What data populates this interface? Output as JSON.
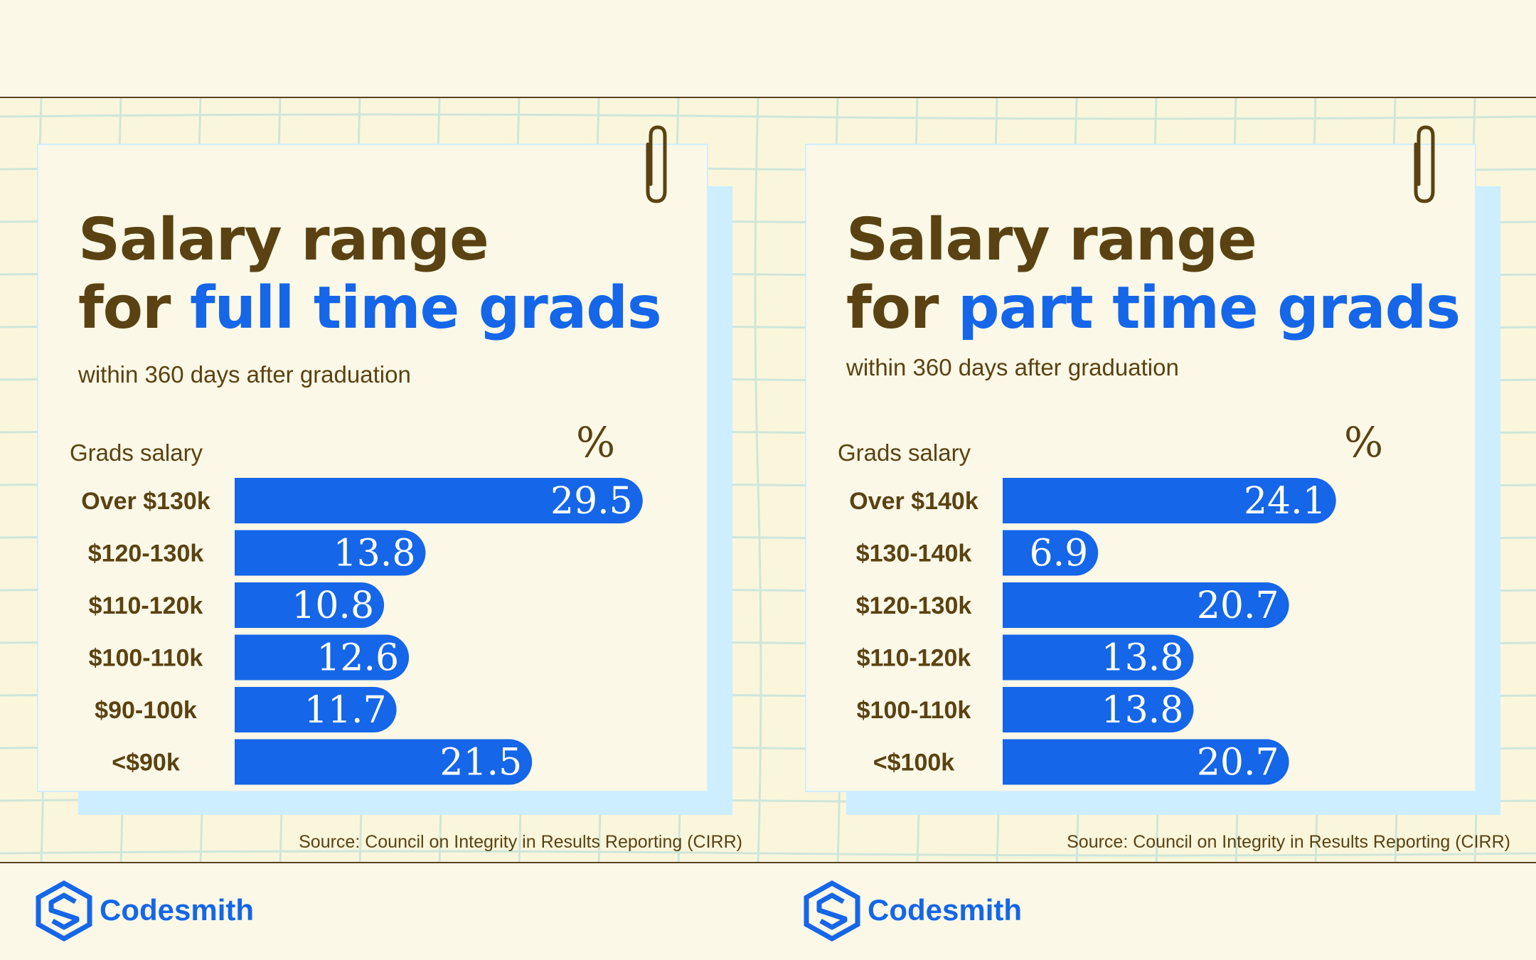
{
  "panels": [
    {
      "title_line1": "Salary range",
      "title_line2_prefix": "for ",
      "title_line2_highlight": "full time grads",
      "subtitle": "within 360 days after graduation",
      "column_header": "Grads salary",
      "value_header": "%",
      "source": "Source: Council on Integrity in Results Reporting (CIRR)",
      "brand": "Codesmith",
      "values_text": [
        "29.5",
        "13.8",
        "10.8",
        "12.6",
        "11.7",
        "21.5"
      ]
    },
    {
      "title_line1": "Salary range",
      "title_line2_prefix": "for ",
      "title_line2_highlight": "part time grads",
      "subtitle": "within 360 days after graduation",
      "column_header": "Grads salary",
      "value_header": "%",
      "source": "Source: Council on Integrity in Results Reporting (CIRR)",
      "brand": "Codesmith",
      "values_text": [
        "24.1",
        "6.9",
        "20.7",
        "13.8",
        "13.8",
        "20.7"
      ]
    }
  ],
  "colors": {
    "accent": "#1566e8",
    "text": "#5a4212",
    "card_shadow": "#cdeefe",
    "background": "#faf6dc"
  },
  "chart_data": [
    {
      "type": "bar",
      "orientation": "horizontal",
      "title": "Salary range for full time grads",
      "subtitle": "within 360 days after graduation",
      "xlabel": "%",
      "ylabel": "Grads salary",
      "categories": [
        "Over $130k",
        "$120-130k",
        "$110-120k",
        "$100-110k",
        "$90-100k",
        "<$90k"
      ],
      "values": [
        29.5,
        13.8,
        10.8,
        12.6,
        11.7,
        21.5
      ],
      "xlim": [
        0,
        30
      ]
    },
    {
      "type": "bar",
      "orientation": "horizontal",
      "title": "Salary range for part time grads",
      "subtitle": "within 360 days after graduation",
      "xlabel": "%",
      "ylabel": "Grads salary",
      "categories": [
        "Over $140k",
        "$130-140k",
        "$120-130k",
        "$110-120k",
        "$100-110k",
        "<$100k"
      ],
      "values": [
        24.1,
        6.9,
        20.7,
        13.8,
        13.8,
        20.7
      ],
      "xlim": [
        0,
        30
      ]
    }
  ]
}
